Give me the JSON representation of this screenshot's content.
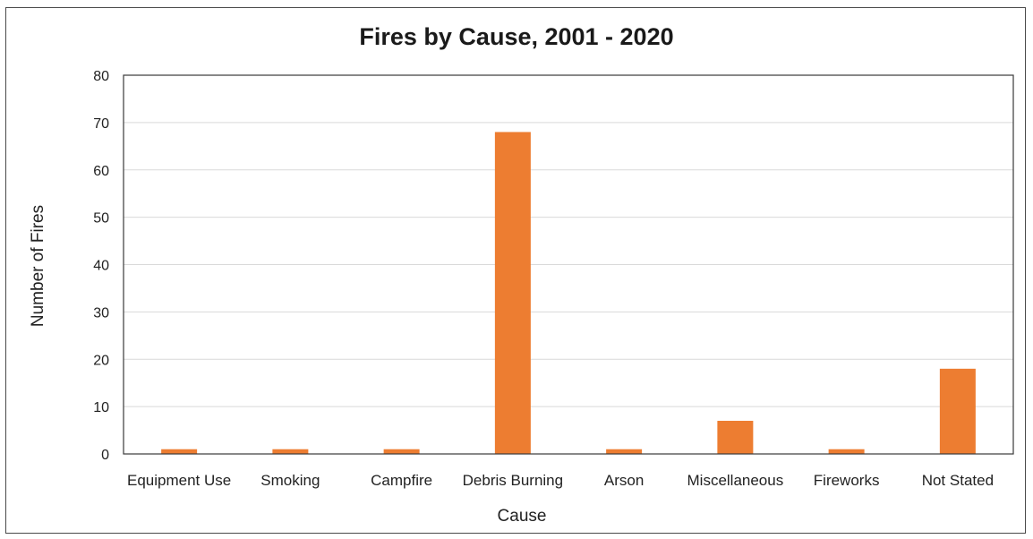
{
  "chart_data": {
    "type": "bar",
    "title": "Fires by Cause, 2001 - 2020",
    "xlabel": "Cause",
    "ylabel": "Number of Fires",
    "categories": [
      "Equipment Use",
      "Smoking",
      "Campfire",
      "Debris Burning",
      "Arson",
      "Miscellaneous",
      "Fireworks",
      "Not Stated"
    ],
    "values": [
      1,
      1,
      1,
      68,
      1,
      7,
      1,
      18
    ],
    "ylim": [
      0,
      80
    ],
    "yticks": [
      0,
      10,
      20,
      30,
      40,
      50,
      60,
      70,
      80
    ],
    "grid": true,
    "legend": "none",
    "bar_color": "#ed7d31"
  }
}
